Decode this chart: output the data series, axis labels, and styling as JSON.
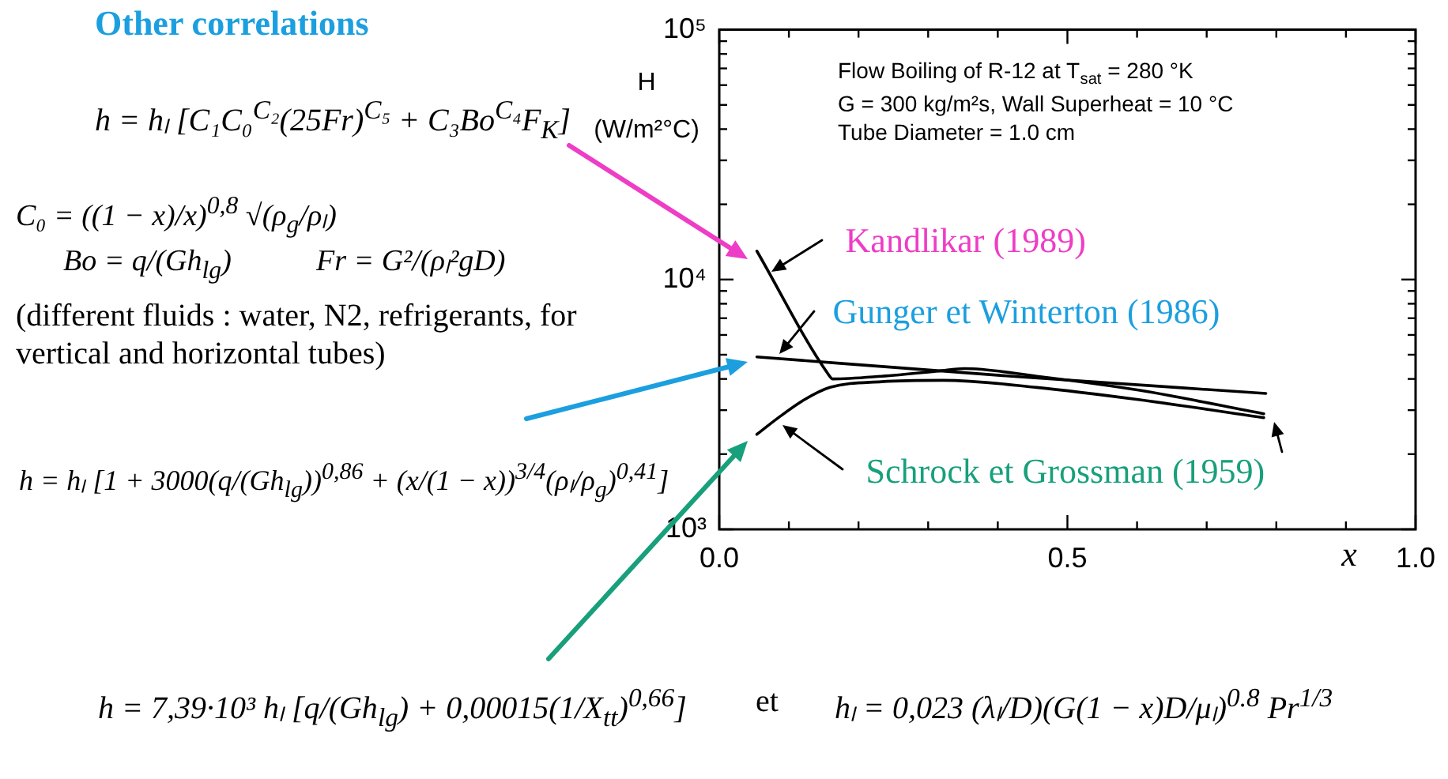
{
  "chart_data": {
    "type": "line",
    "title": "Other correlations",
    "xlabel": "x",
    "ylabel": "H (W/m²°C)",
    "annotations": [
      "Flow Boiling of R-12 at T$_{sat}$ = 280 °K",
      "G = 300 kg/m²s, Wall Superheat = 10 °C",
      "Tube Diameter = 1.0 cm",
      "h = hₗ [C₁C₀$^{C₂}$(25Fr)$^{C₅}$ + C₃Bo$^{C₄}$F$_{K}$]",
      "C₀ = ((1 − x)/x)$^{0,8}$ √(ρ$_{g}$/ρₗ)",
      "Bo = q/(Gh$_{lg}$)",
      "Fr = G²/(ρₗ²gD)",
      "(different fluids : water, N2, refrigerants, for vertical and horizontal tubes)",
      "h = hₗ [1 + 3000(q/(Gh$_{lg}$))$^{0,86}$ + (x/(1 − x))$^{3/4}$(ρₗ/ρ$_{g}$)$^{0,41}$]",
      "h = 7,39·10³ hₗ [q/(Gh$_{lg}$) + 0,00015(1/X$_{tt}$)$^{0,66}$]",
      "et",
      "hₗ = 0,023 (λₗ/D)(G(1 − x)D/μₗ)$^{0.8}$ Pr$^{1/3}$"
    ],
    "series": [
      {
        "name": "Kandlikar (1989)",
        "color": "#000000",
        "x": [
          0.054,
          0.156,
          0.163,
          0.233,
          0.315,
          0.352,
          0.456,
          0.604,
          0.782
        ],
        "values": [
          13000,
          4200,
          4000,
          4100,
          4300,
          4400,
          4100,
          3600,
          2900
        ]
      },
      {
        "name": "Gunger et Winterton (1986)",
        "color": "#000000",
        "x": [
          0.054,
          0.42,
          0.785
        ],
        "values": [
          4900,
          4100,
          3500
        ]
      },
      {
        "name": "Schrock et Grossman (1959)",
        "color": "#000000",
        "x": [
          0.054,
          0.085,
          0.122,
          0.159,
          0.233,
          0.322,
          0.456,
          0.604,
          0.782
        ],
        "values": [
          2400,
          2800,
          3300,
          3700,
          3900,
          3950,
          3700,
          3300,
          2800
        ]
      }
    ],
    "xlim": [
      0,
      1
    ],
    "xticks": [
      {
        "value": 0,
        "label": "0.0"
      },
      {
        "value": 0.1,
        "label": null
      },
      {
        "value": 0.2,
        "label": null
      },
      {
        "value": 0.3,
        "label": null
      },
      {
        "value": 0.4,
        "label": null
      },
      0.5,
      {
        "value": 0.6,
        "label": null
      },
      {
        "value": 0.7,
        "label": null
      },
      {
        "value": 0.8,
        "label": null
      },
      {
        "value": 0.9,
        "label": null
      },
      {
        "value": 1,
        "label": "1.0"
      }
    ],
    "ylim": [
      1000,
      100000
    ],
    "yticks": [
      {
        "value": 1000,
        "label": "10³"
      },
      {
        "value": 2000,
        "label": null
      },
      {
        "value": 3000,
        "label": null
      },
      {
        "value": 4000,
        "label": null
      },
      {
        "value": 5000,
        "label": null
      },
      {
        "value": 6000,
        "label": null
      },
      {
        "value": 7000,
        "label": null
      },
      {
        "value": 8000,
        "label": null
      },
      {
        "value": 9000,
        "label": null
      },
      {
        "value": 10000,
        "label": "10⁴"
      },
      {
        "value": 20000,
        "label": null
      },
      {
        "value": 30000,
        "label": null
      },
      {
        "value": 40000,
        "label": null
      },
      {
        "value": 50000,
        "label": null
      },
      {
        "value": 60000,
        "label": null
      },
      {
        "value": 70000,
        "label": null
      },
      {
        "value": 80000,
        "label": null
      },
      {
        "value": 90000,
        "label": null
      },
      {
        "value": 100000,
        "label": "10⁵"
      }
    ],
    "log": true,
    "legend": "left",
    "marker": "none",
    "line_style": "solid"
  }
}
